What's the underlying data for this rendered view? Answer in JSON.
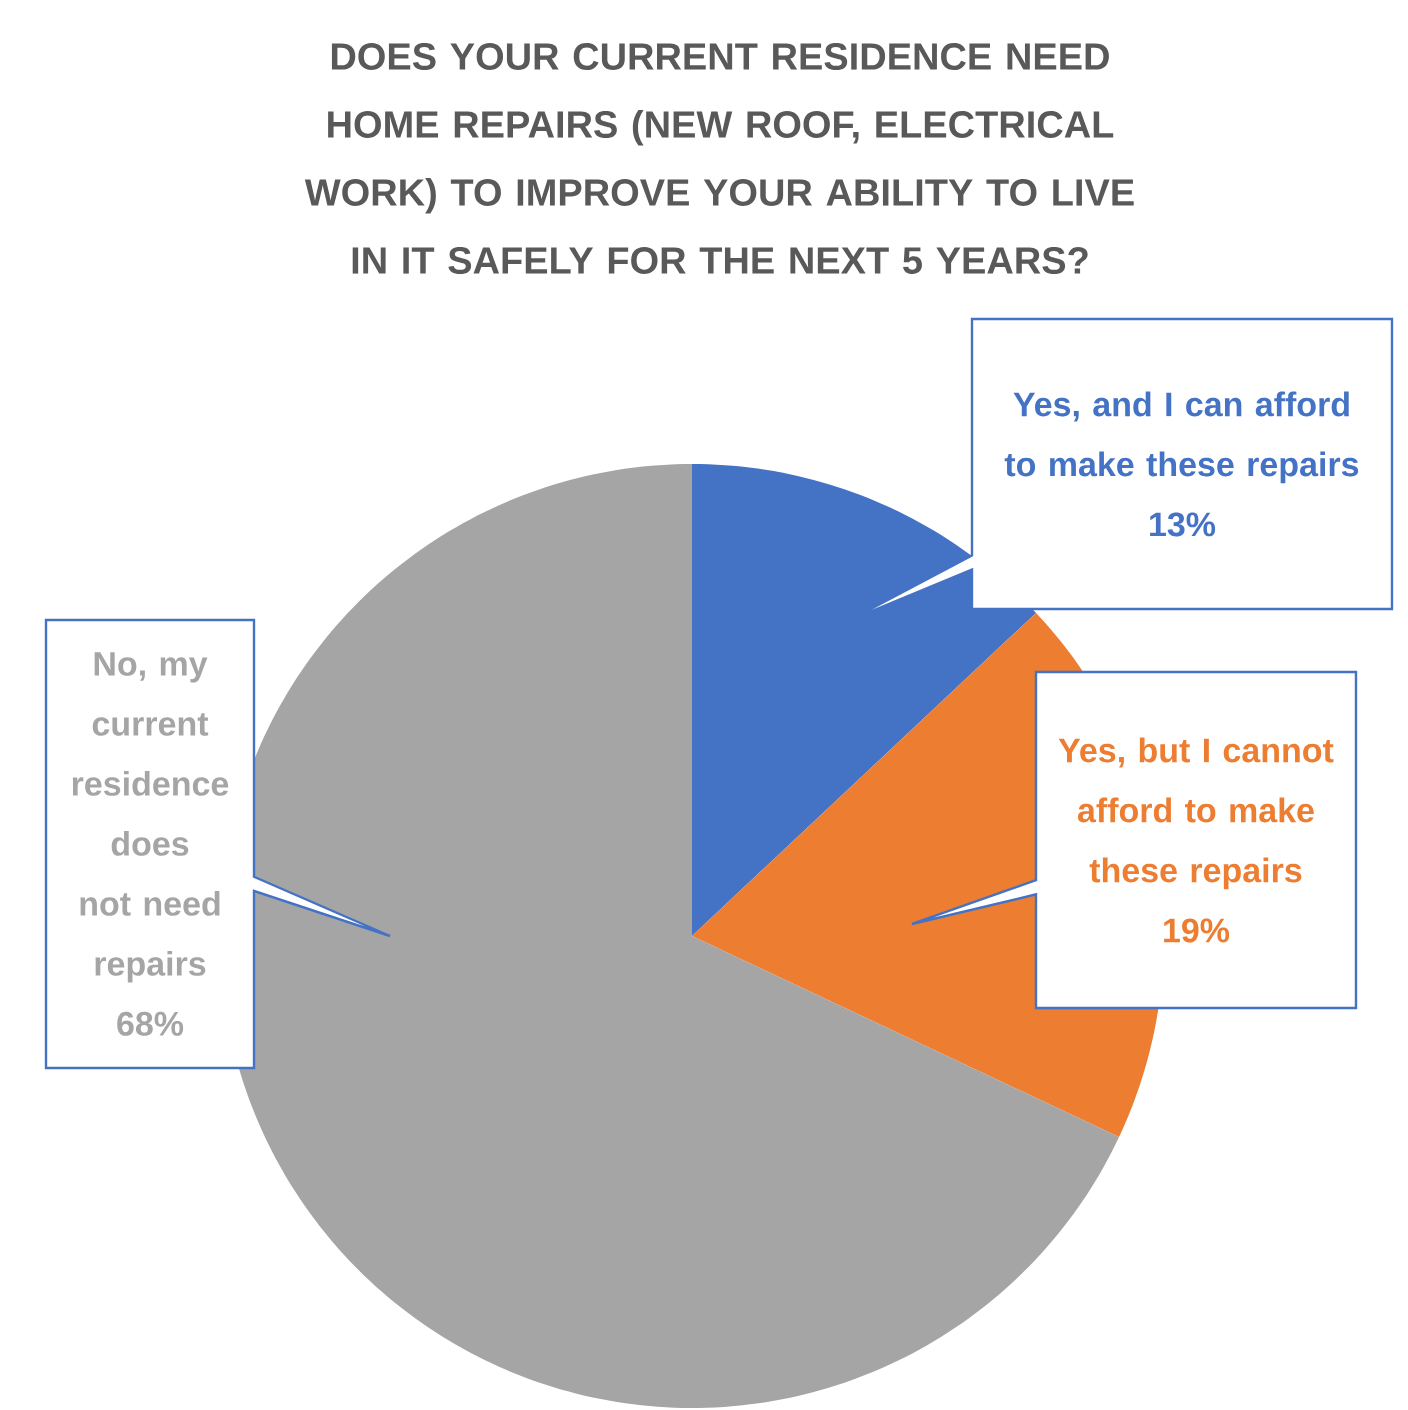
{
  "chart_data": {
    "type": "pie",
    "title": "DOES YOUR CURRENT RESIDENCE NEED HOME REPAIRS (NEW ROOF, ELECTRICAL WORK) TO IMPROVE YOUR ABILITY TO LIVE IN IT SAFELY FOR THE NEXT 5 YEARS?",
    "categories": [
      "Yes, and I can afford to make these repairs",
      "Yes, but I cannot afford to make these repairs",
      "No, my current residence does not need repairs"
    ],
    "values": [
      13,
      19,
      68
    ],
    "colors": [
      "#4472c4",
      "#ed7d31",
      "#a5a5a5"
    ],
    "value_labels": [
      "13%",
      "19%",
      "68%"
    ]
  }
}
